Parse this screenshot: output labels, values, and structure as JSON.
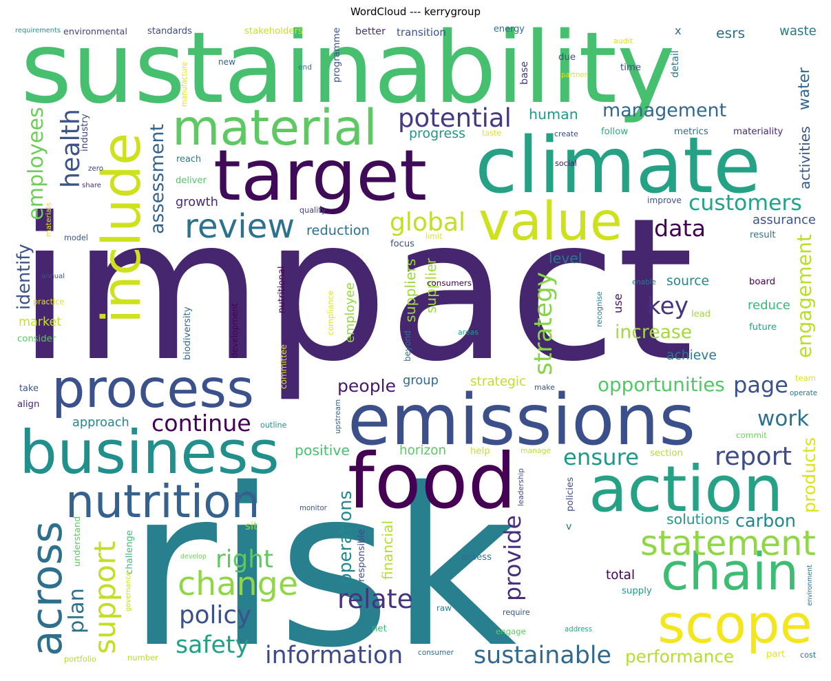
{
  "title": "WordCloud --- kerrygroup",
  "words": [
    {
      "text": "impact",
      "color": "#46266e"
    },
    {
      "text": "risk",
      "color": "#287f8e"
    },
    {
      "text": "sustainability",
      "color": "#46c06f"
    },
    {
      "text": "climate",
      "color": "#25a285"
    },
    {
      "text": "target",
      "color": "#3f0a57"
    },
    {
      "text": "emissions",
      "color": "#3b4f8a"
    },
    {
      "text": "food",
      "color": "#440154"
    },
    {
      "text": "business",
      "color": "#21908d"
    },
    {
      "text": "action",
      "color": "#25a285"
    },
    {
      "text": "include",
      "color": "#cde11d"
    },
    {
      "text": "process",
      "color": "#3b518b"
    },
    {
      "text": "material",
      "color": "#5ec962"
    },
    {
      "text": "value",
      "color": "#cde11d"
    },
    {
      "text": "scope",
      "color": "#f4e61e"
    },
    {
      "text": "chain",
      "color": "#3dbc74"
    },
    {
      "text": "nutrition",
      "color": "#34618d"
    },
    {
      "text": "across",
      "color": "#2d708e"
    },
    {
      "text": "statement",
      "color": "#8fd744"
    },
    {
      "text": "change",
      "color": "#8fd744"
    },
    {
      "text": "review",
      "color": "#2c728e"
    },
    {
      "text": "management",
      "color": "#31688e"
    },
    {
      "text": "potential",
      "color": "#443983"
    },
    {
      "text": "information",
      "color": "#3e4989"
    },
    {
      "text": "sustainable",
      "color": "#31688e"
    },
    {
      "text": "support",
      "color": "#c2df23"
    },
    {
      "text": "customers",
      "color": "#20a386"
    },
    {
      "text": "global",
      "color": "#c2df23"
    },
    {
      "text": "health",
      "color": "#3b528b"
    },
    {
      "text": "employees",
      "color": "#6ece58"
    },
    {
      "text": "assessment",
      "color": "#33638d"
    },
    {
      "text": "data",
      "color": "#440154"
    },
    {
      "text": "key",
      "color": "#46337f"
    },
    {
      "text": "strategy",
      "color": "#86d549"
    },
    {
      "text": "engagement",
      "color": "#b8de29"
    },
    {
      "text": "water",
      "color": "#32658e"
    },
    {
      "text": "continue",
      "color": "#440154"
    },
    {
      "text": "opportunities",
      "color": "#54c568"
    },
    {
      "text": "page",
      "color": "#3b518b"
    },
    {
      "text": "work",
      "color": "#2c728e"
    },
    {
      "text": "report",
      "color": "#3e4c8a"
    },
    {
      "text": "ensure",
      "color": "#1f988b"
    },
    {
      "text": "relate",
      "color": "#46337f"
    },
    {
      "text": "provide",
      "color": "#472d7b"
    },
    {
      "text": "policy",
      "color": "#3b518b"
    },
    {
      "text": "right",
      "color": "#5ec962"
    },
    {
      "text": "safety",
      "color": "#1fa188"
    },
    {
      "text": "plan",
      "color": "#2d708e"
    },
    {
      "text": "performance",
      "color": "#b5de2b"
    },
    {
      "text": "products",
      "color": "#dde318"
    },
    {
      "text": "operations",
      "color": "#24878e"
    },
    {
      "text": "people",
      "color": "#48186a"
    },
    {
      "text": "increase",
      "color": "#a2da37"
    },
    {
      "text": "carbon",
      "color": "#24878e"
    },
    {
      "text": "human",
      "color": "#1f9a8a"
    },
    {
      "text": "identify",
      "color": "#3b528b"
    },
    {
      "text": "reduction",
      "color": "#2c728e"
    },
    {
      "text": "growth",
      "color": "#482878"
    },
    {
      "text": "approach",
      "color": "#24878e"
    },
    {
      "text": "solutions",
      "color": "#1f978b"
    },
    {
      "text": "positive",
      "color": "#48c16e"
    },
    {
      "text": "source",
      "color": "#23888e"
    },
    {
      "text": "reduce",
      "color": "#35b779"
    },
    {
      "text": "achieve",
      "color": "#2a788e"
    },
    {
      "text": "assurance",
      "color": "#3b528b"
    },
    {
      "text": "level",
      "color": "#2a788e"
    },
    {
      "text": "strategic",
      "color": "#c0df25"
    },
    {
      "text": "group",
      "color": "#30698e"
    },
    {
      "text": "horizon",
      "color": "#5cc863"
    },
    {
      "text": "supplier",
      "color": "#9fda3a"
    },
    {
      "text": "esrs",
      "color": "#2d708e"
    },
    {
      "text": "waste",
      "color": "#2a788e"
    },
    {
      "text": "progress",
      "color": "#1f968b"
    },
    {
      "text": "market",
      "color": "#cae11f"
    },
    {
      "text": "employee",
      "color": "#95d840"
    },
    {
      "text": "financial",
      "color": "#b5de2b"
    },
    {
      "text": "suppliers",
      "color": "#9bd93c"
    },
    {
      "text": "total",
      "color": "#440154"
    },
    {
      "text": "activities",
      "color": "#38598c"
    },
    {
      "text": "better",
      "color": "#46307e"
    },
    {
      "text": "standards",
      "color": "#3e4a89"
    },
    {
      "text": "environmental",
      "color": "#433e85"
    },
    {
      "text": "stakeholders",
      "color": "#c5e021"
    },
    {
      "text": "transition",
      "color": "#3b528b"
    },
    {
      "text": "programme",
      "color": "#3b528b"
    },
    {
      "text": "energy",
      "color": "#31688e"
    },
    {
      "text": "x",
      "color": "#2d708e"
    },
    {
      "text": "time",
      "color": "#3e4989"
    },
    {
      "text": "due",
      "color": "#3e4989"
    },
    {
      "text": "new",
      "color": "#355f8d"
    },
    {
      "text": "end",
      "color": "#2a788e"
    },
    {
      "text": "base",
      "color": "#443983"
    },
    {
      "text": "detail",
      "color": "#2c728e"
    },
    {
      "text": "audit",
      "color": "#dde318"
    },
    {
      "text": "partner",
      "color": "#e2e418"
    },
    {
      "text": "manufacture",
      "color": "#e2e418"
    },
    {
      "text": "industry",
      "color": "#404588"
    },
    {
      "text": "zero",
      "color": "#3e4989"
    },
    {
      "text": "share",
      "color": "#472c7a"
    },
    {
      "text": "reach",
      "color": "#2a788e"
    },
    {
      "text": "deliver",
      "color": "#52c569"
    },
    {
      "text": "taste",
      "color": "#e2e418"
    },
    {
      "text": "create",
      "color": "#3e4989"
    },
    {
      "text": "follow",
      "color": "#27ad81"
    },
    {
      "text": "metrics",
      "color": "#31688e"
    },
    {
      "text": "materiality",
      "color": "#482878"
    },
    {
      "text": "social",
      "color": "#48186a"
    },
    {
      "text": "quality",
      "color": "#404588"
    },
    {
      "text": "improve",
      "color": "#3b528b"
    },
    {
      "text": "materials",
      "color": "#e5e419"
    },
    {
      "text": "model",
      "color": "#3b528b"
    },
    {
      "text": "limit",
      "color": "#e2e418"
    },
    {
      "text": "focus",
      "color": "#3b528b"
    },
    {
      "text": "result",
      "color": "#2a788e"
    },
    {
      "text": "annual",
      "color": "#3b528b"
    },
    {
      "text": "consumers",
      "color": "#440154"
    },
    {
      "text": "practice",
      "color": "#e2e418"
    },
    {
      "text": "nutritional",
      "color": "#440154"
    },
    {
      "text": "biodiversity",
      "color": "#31688e"
    },
    {
      "text": "development",
      "color": "#440154"
    },
    {
      "text": "compliance",
      "color": "#e2e418"
    },
    {
      "text": "recognise",
      "color": "#2a788e"
    },
    {
      "text": "enable",
      "color": "#2a788e"
    },
    {
      "text": "use",
      "color": "#481467"
    },
    {
      "text": "board",
      "color": "#440154"
    },
    {
      "text": "lead",
      "color": "#9dd93b"
    },
    {
      "text": "future",
      "color": "#21a585"
    },
    {
      "text": "consider",
      "color": "#5ec962"
    },
    {
      "text": "areas",
      "color": "#20a386"
    },
    {
      "text": "beyond",
      "color": "#2c728e"
    },
    {
      "text": "committee",
      "color": "#e2e418"
    },
    {
      "text": "take",
      "color": "#3b528b"
    },
    {
      "text": "align",
      "color": "#482878"
    },
    {
      "text": "make",
      "color": "#3b528b"
    },
    {
      "text": "team",
      "color": "#dde318"
    },
    {
      "text": "operate",
      "color": "#2a788e"
    },
    {
      "text": "outline",
      "color": "#1f968b"
    },
    {
      "text": "upstream",
      "color": "#34618d"
    },
    {
      "text": "commit",
      "color": "#6ece58"
    },
    {
      "text": "help",
      "color": "#c8e020"
    },
    {
      "text": "manage",
      "color": "#bade28"
    },
    {
      "text": "section",
      "color": "#b5de2b"
    },
    {
      "text": "leadership",
      "color": "#3e4989"
    },
    {
      "text": "policies",
      "color": "#3e4a89"
    },
    {
      "text": "monitor",
      "color": "#3b528b"
    },
    {
      "text": "sit",
      "color": "#95d840"
    },
    {
      "text": "v",
      "color": "#2c728e"
    },
    {
      "text": "understand",
      "color": "#5ec962"
    },
    {
      "text": "challenge",
      "color": "#3dbc74"
    },
    {
      "text": "responsible",
      "color": "#3e4a89"
    },
    {
      "text": "develop",
      "color": "#6ece58"
    },
    {
      "text": "assess",
      "color": "#2c728e"
    },
    {
      "text": "governance",
      "color": "#c2df23"
    },
    {
      "text": "supply",
      "color": "#1f988b"
    },
    {
      "text": "environment",
      "color": "#2d708e"
    },
    {
      "text": "raw",
      "color": "#2a788e"
    },
    {
      "text": "require",
      "color": "#3b528b"
    },
    {
      "text": "net",
      "color": "#3dbc74"
    },
    {
      "text": "engage",
      "color": "#5ec962"
    },
    {
      "text": "address",
      "color": "#22a884"
    },
    {
      "text": "portfolio",
      "color": "#b5de2b"
    },
    {
      "text": "number",
      "color": "#b5de2b"
    },
    {
      "text": "consumer",
      "color": "#31688e"
    },
    {
      "text": "part",
      "color": "#e2e418"
    },
    {
      "text": "cost",
      "color": "#2d708e"
    },
    {
      "text": "requirements",
      "color": "#21908d"
    }
  ]
}
